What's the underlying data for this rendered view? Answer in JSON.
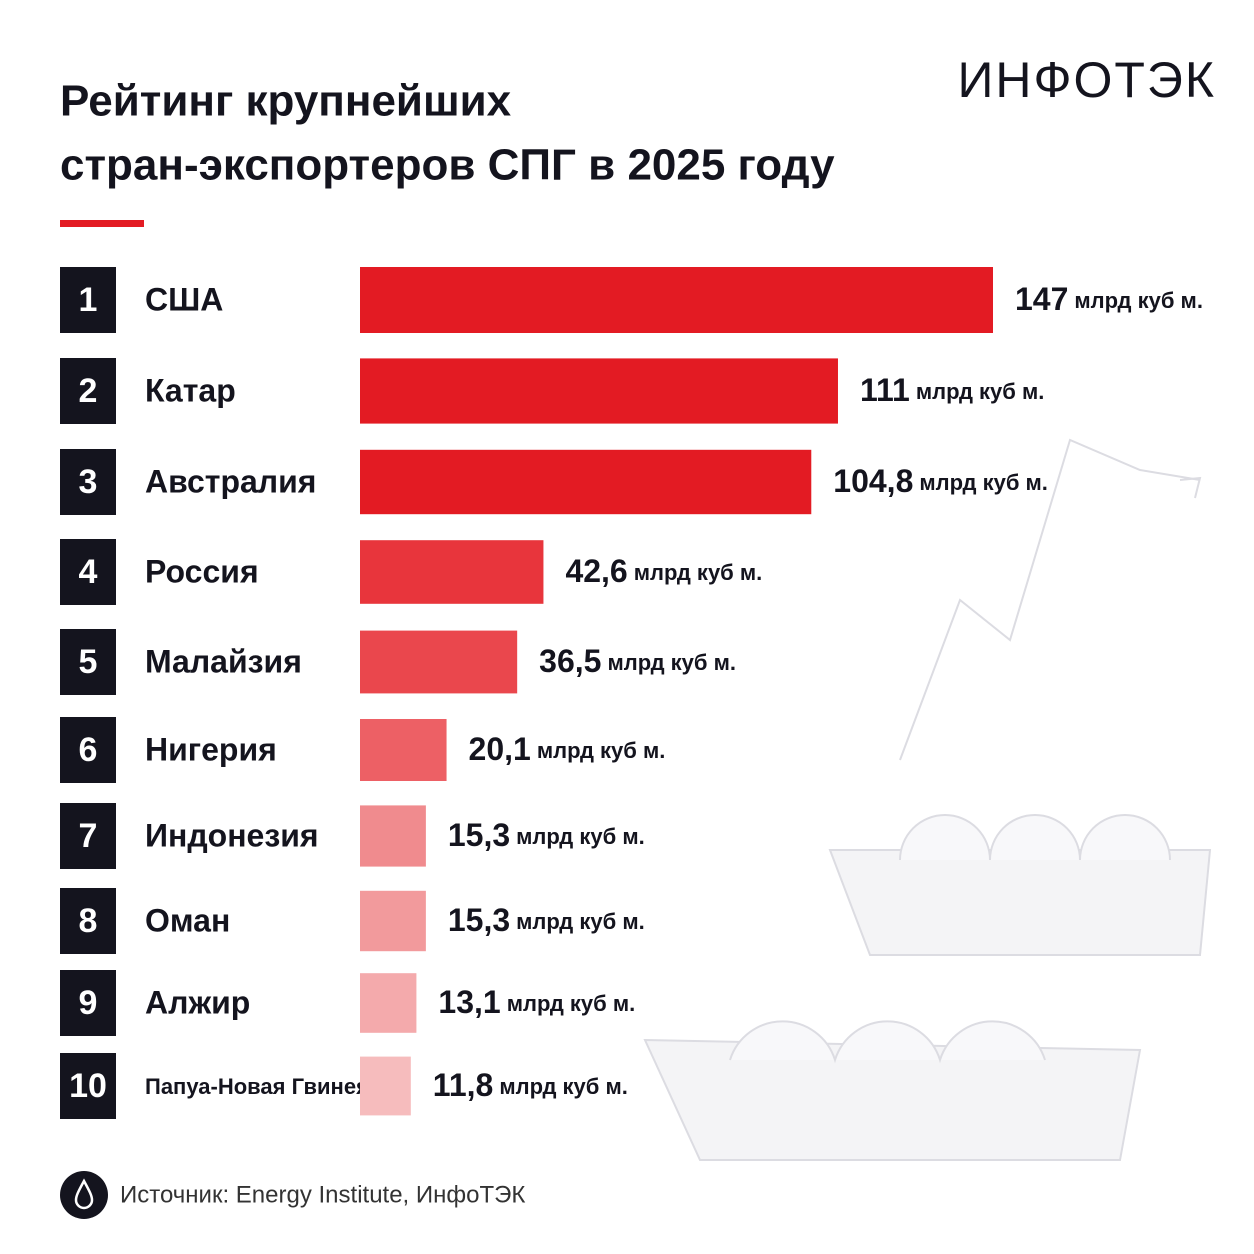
{
  "chart_data": {
    "type": "bar",
    "title": [
      "Рейтинг крупнейших",
      "стран-экспортеров СПГ в 2025 году"
    ],
    "logo": "ИНФОТЭК",
    "ranks": [
      1,
      2,
      3,
      4,
      5,
      6,
      7,
      8,
      9,
      10
    ],
    "categories": [
      "США",
      "Катар",
      "Австралия",
      "Россия",
      "Малайзия",
      "Нигерия",
      "Индонезия",
      "Оман",
      "Алжир",
      "Папуа-Новая Гвинея"
    ],
    "values": [
      147,
      111,
      104.8,
      42.6,
      36.5,
      20.1,
      15.3,
      15.3,
      13.1,
      11.8
    ],
    "value_labels": [
      "147",
      "111",
      "104,8",
      "42,6",
      "36,5",
      "20,1",
      "15,3",
      "15,3",
      "13,1",
      "11,8"
    ],
    "unit": "млрд куб м.",
    "colors": [
      "#e31b23",
      "#e31b23",
      "#e31b23",
      "#e8353c",
      "#ea474d",
      "#ed6065",
      "#f08b8e",
      "#f29a9c",
      "#f4aaac",
      "#f6bcbd"
    ],
    "source": "Источник: Energy Institute, ИнфоТЭК"
  }
}
